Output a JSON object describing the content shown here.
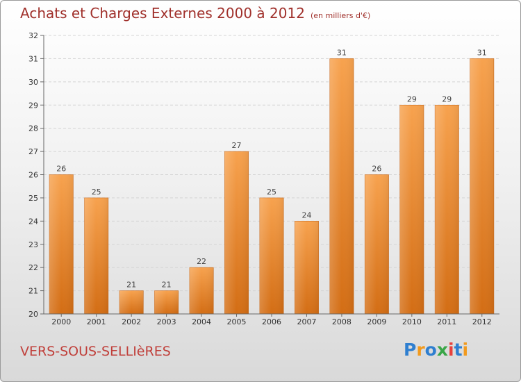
{
  "chart_data": {
    "type": "bar",
    "title": "Achats et Charges Externes 2000 à 2012",
    "subtitle": "(en milliers d'€)",
    "xlabel": "",
    "ylabel": "",
    "categories": [
      "2000",
      "2001",
      "2002",
      "2003",
      "2004",
      "2005",
      "2006",
      "2007",
      "2008",
      "2009",
      "2010",
      "2011",
      "2012"
    ],
    "values": [
      26,
      25,
      21,
      21,
      22,
      27,
      25,
      24,
      31,
      26,
      29,
      29,
      31
    ],
    "ylim": [
      20,
      32
    ],
    "yticks": [
      20,
      21,
      22,
      23,
      24,
      25,
      26,
      27,
      28,
      29,
      30,
      31,
      32
    ],
    "grid": true,
    "legend": "none",
    "bar_color": "#f0923a"
  },
  "place": "VERS-SOUS-SELLIèRES",
  "logo": {
    "letters": [
      {
        "ch": "P",
        "color": "#2f7fd0"
      },
      {
        "ch": "r",
        "color": "#f29a1d"
      },
      {
        "ch": "o",
        "color": "#2f7fd0"
      },
      {
        "ch": "x",
        "color": "#3aa648"
      },
      {
        "ch": "i",
        "color": "#e8413c"
      },
      {
        "ch": "t",
        "color": "#2f7fd0"
      },
      {
        "ch": "i",
        "color": "#f29a1d"
      }
    ]
  }
}
